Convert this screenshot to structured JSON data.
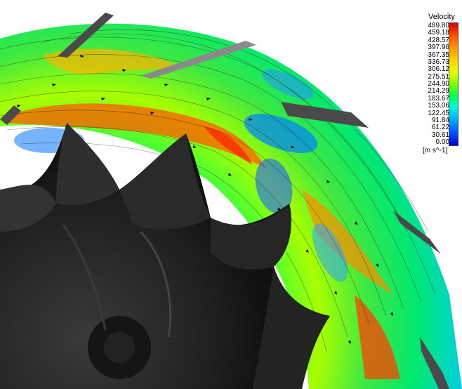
{
  "legend": {
    "title": "Velocity",
    "unit": "[m s^-1]",
    "ticks": [
      "489.80",
      "459.18",
      "428.57",
      "397.96",
      "367.35",
      "336.73",
      "306.12",
      "275.51",
      "244.90",
      "214.29",
      "183.67",
      "153.06",
      "122.45",
      "91.84",
      "61.22",
      "30.61",
      "0.00"
    ]
  },
  "colors": {
    "background": "#ffffff",
    "impeller": "#1c1c1c",
    "vane": "#4a4a4a"
  }
}
